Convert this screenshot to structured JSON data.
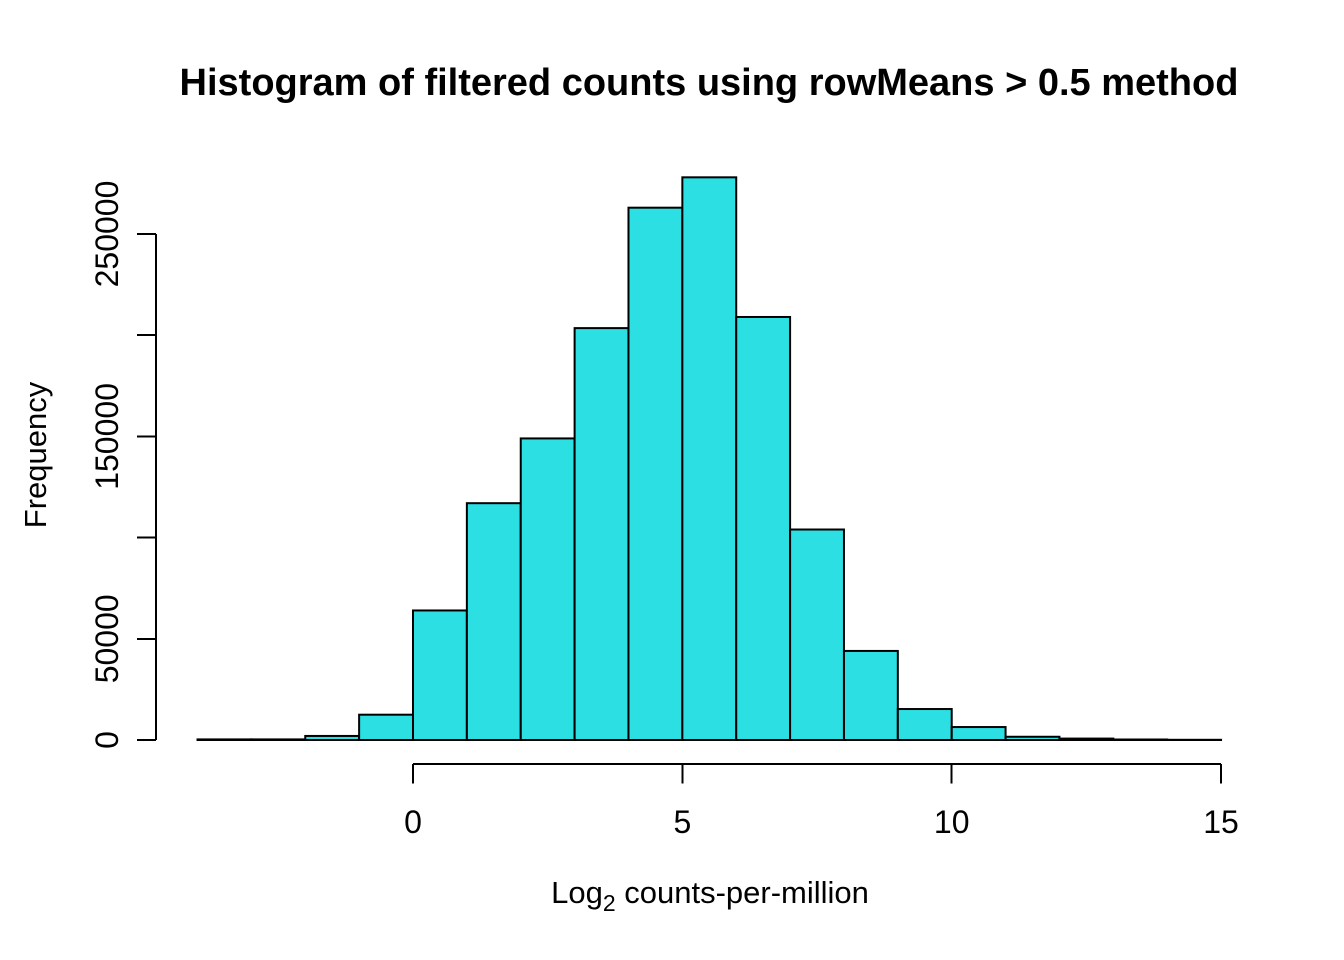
{
  "figure": {
    "background": "#ffffff"
  },
  "chart_data": {
    "type": "bar",
    "subtype": "histogram",
    "title": "Histogram of filtered counts using rowMeans > 0.5 method",
    "xlabel": {
      "prefix": "Log",
      "sub": "2",
      "rest": " counts-per-million"
    },
    "ylabel": "Frequency",
    "bar_fill": "#2BDFE3",
    "bar_stroke": "#000000",
    "axis_color": "#000000",
    "grid": false,
    "legend": false,
    "bin_width": 1,
    "bin_start": [
      -4,
      -3,
      -2,
      -1,
      0,
      1,
      2,
      3,
      4,
      5,
      6,
      7,
      8,
      9,
      10,
      11,
      12,
      13,
      14
    ],
    "counts": [
      300,
      300,
      2000,
      12500,
      64000,
      117000,
      149000,
      203500,
      263000,
      278000,
      209000,
      104000,
      44000,
      15300,
      6400,
      1600,
      700,
      250,
      100
    ],
    "x_ticks": [
      {
        "value": 0,
        "label": "0"
      },
      {
        "value": 5,
        "label": "5"
      },
      {
        "value": 10,
        "label": "10"
      },
      {
        "value": 15,
        "label": "15"
      }
    ],
    "y_ticks": [
      {
        "value": 0,
        "label": "0"
      },
      {
        "value": 50000,
        "label": "50000"
      },
      {
        "value": 100000,
        "label": ""
      },
      {
        "value": 150000,
        "label": "150000"
      },
      {
        "value": 200000,
        "label": ""
      },
      {
        "value": 250000,
        "label": "250000"
      }
    ],
    "xlim": [
      -4,
      15
    ],
    "ylim": [
      0,
      250000
    ]
  }
}
